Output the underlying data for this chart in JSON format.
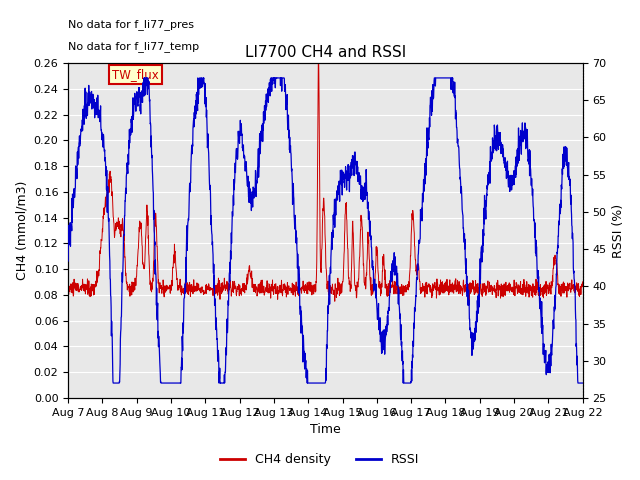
{
  "title": "LI7700 CH4 and RSSI",
  "xlabel": "Time",
  "ylabel_left": "CH4 (mmol/m3)",
  "ylabel_right": "RSSI (%)",
  "annotation1": "No data for f_li77_pres",
  "annotation2": "No data for f_li77_temp",
  "legend_box_label": "TW_flux",
  "legend_box_color": "#cc0000",
  "ylim_left": [
    0.0,
    0.26
  ],
  "ylim_right": [
    25,
    70
  ],
  "yticks_left": [
    0.0,
    0.02,
    0.04,
    0.06,
    0.08,
    0.1,
    0.12,
    0.14,
    0.16,
    0.18,
    0.2,
    0.22,
    0.24,
    0.26
  ],
  "yticks_right": [
    25,
    30,
    35,
    40,
    45,
    50,
    55,
    60,
    65,
    70
  ],
  "xtick_labels": [
    "Aug 7",
    "Aug 8",
    "Aug 9",
    "Aug 10",
    "Aug 11",
    "Aug 12",
    "Aug 13",
    "Aug 14",
    "Aug 15",
    "Aug 16",
    "Aug 17",
    "Aug 18",
    "Aug 19",
    "Aug 20",
    "Aug 21",
    "Aug 22"
  ],
  "ch4_color": "#cc0000",
  "rssi_color": "#0000cc",
  "background_color": "#e8e8e8",
  "grid_color": "#ffffff",
  "title_fontsize": 11,
  "label_fontsize": 9,
  "tick_fontsize": 8,
  "annot_fontsize": 8
}
